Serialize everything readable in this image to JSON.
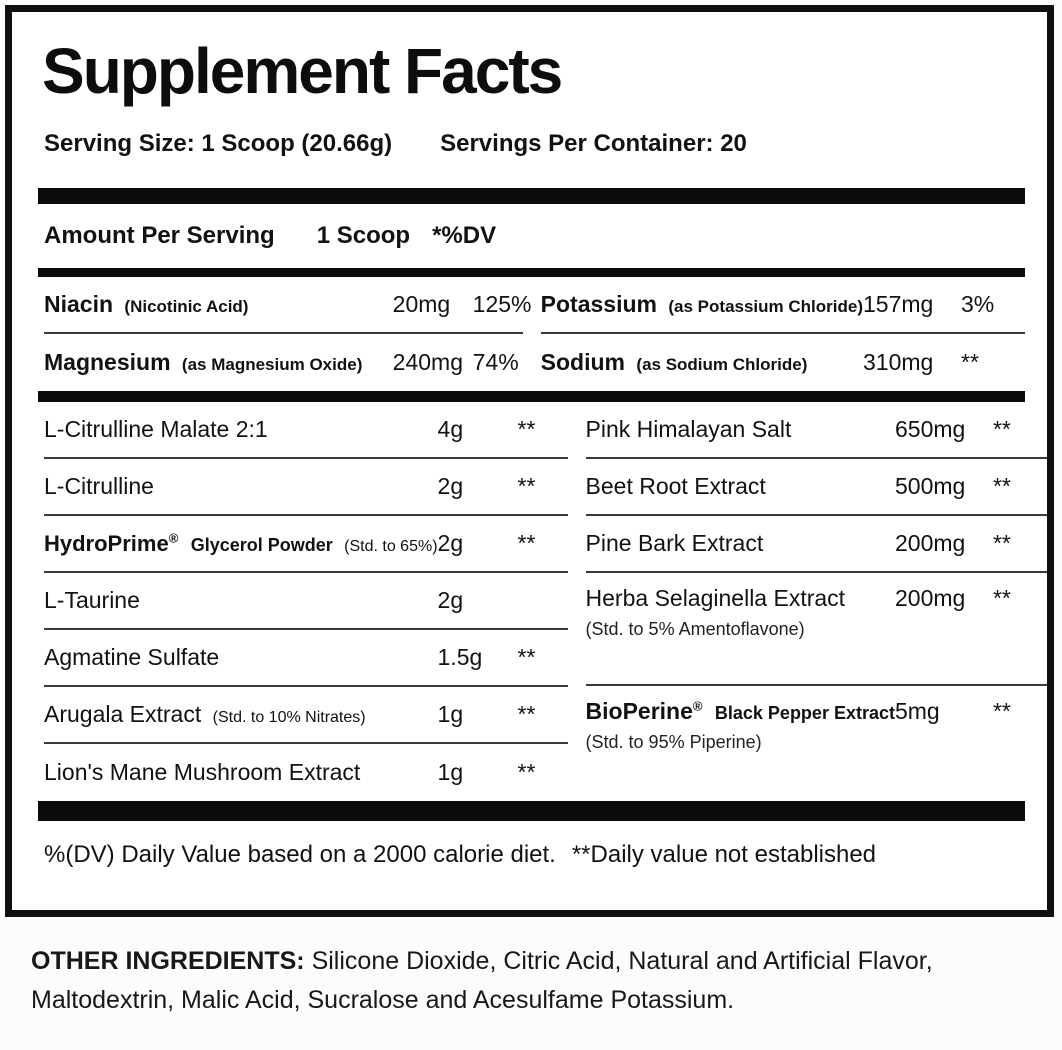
{
  "page": {
    "title": "Supplement Facts",
    "serving_size": "Serving Size: 1 Scoop (20.66g)",
    "servings_per_container": "Servings Per Container: 20",
    "columns_header": {
      "amount_per_serving": "Amount Per Serving",
      "scoop": "1 Scoop",
      "dv": "*%DV"
    },
    "footnote_dv": "%(DV) Daily Value based on a 2000 calorie diet.",
    "footnote_established": "**Daily value not established",
    "other_ingredients": {
      "label": "OTHER INGREDIENTS:",
      "text": "Silicone Dioxide, Citric Acid, Natural and Artificial Flavor, Maltodextrin, Malic Acid, Sucralose and Acesulfame Potassium."
    }
  },
  "table": {
    "minerals_left": [
      {
        "name": "Niacin",
        "detail": "(Nicotinic Acid)",
        "amount": "20mg",
        "dv": "125%"
      },
      {
        "name": "Magnesium",
        "detail": "(as Magnesium Oxide)",
        "amount": "240mg",
        "dv": "74%"
      }
    ],
    "minerals_right": [
      {
        "name": "Potassium",
        "detail": "(as Potassium Chloride)",
        "amount": "157mg",
        "dv": "3%"
      },
      {
        "name": "Sodium",
        "detail": "(as Sodium Chloride)",
        "amount": "310mg",
        "dv": "**"
      }
    ],
    "ingredients_left": [
      {
        "name": "L-Citrulline Malate 2:1",
        "amount": "4g",
        "dv": "**"
      },
      {
        "name": "L-Citrulline",
        "amount": "2g",
        "dv": "**"
      },
      {
        "name": "HydroPrime",
        "reg": "®",
        "name2": "Glycerol Powder",
        "detail": "(Std. to 65%)",
        "amount": "2g",
        "dv": "**"
      },
      {
        "name": "L-Taurine",
        "amount": "2g",
        "dv": ""
      },
      {
        "name": "Agmatine Sulfate",
        "amount": "1.5g",
        "dv": "**"
      },
      {
        "name": "Arugala Extract",
        "detail": "(Std. to 10% Nitrates)",
        "amount": "1g",
        "dv": "**"
      },
      {
        "name": "Lion's Mane Mushroom Extract",
        "amount": "1g",
        "dv": "**"
      }
    ],
    "ingredients_right": [
      {
        "name": "Pink Himalayan Salt",
        "amount": "650mg",
        "dv": "**"
      },
      {
        "name": "Beet Root Extract",
        "amount": "500mg",
        "dv": "**"
      },
      {
        "name": "Pine Bark Extract",
        "amount": "200mg",
        "dv": "**"
      },
      {
        "name": "Herba Selaginella Extract",
        "subtext": "(Std. to 5% Amentoflavone)",
        "amount": "200mg",
        "dv": "**"
      },
      {
        "name": "BioPerine",
        "reg": "®",
        "name2": "Black Pepper Extract",
        "subtext": "(Std. to 95% Piperine)",
        "amount": "5mg",
        "dv": "**"
      }
    ]
  },
  "colors": {
    "text": "#121212",
    "bar": "#0b0b0b",
    "divider": "#3a3a3a",
    "label_background": "#ffffff",
    "page_background": "#fcfcfc"
  }
}
